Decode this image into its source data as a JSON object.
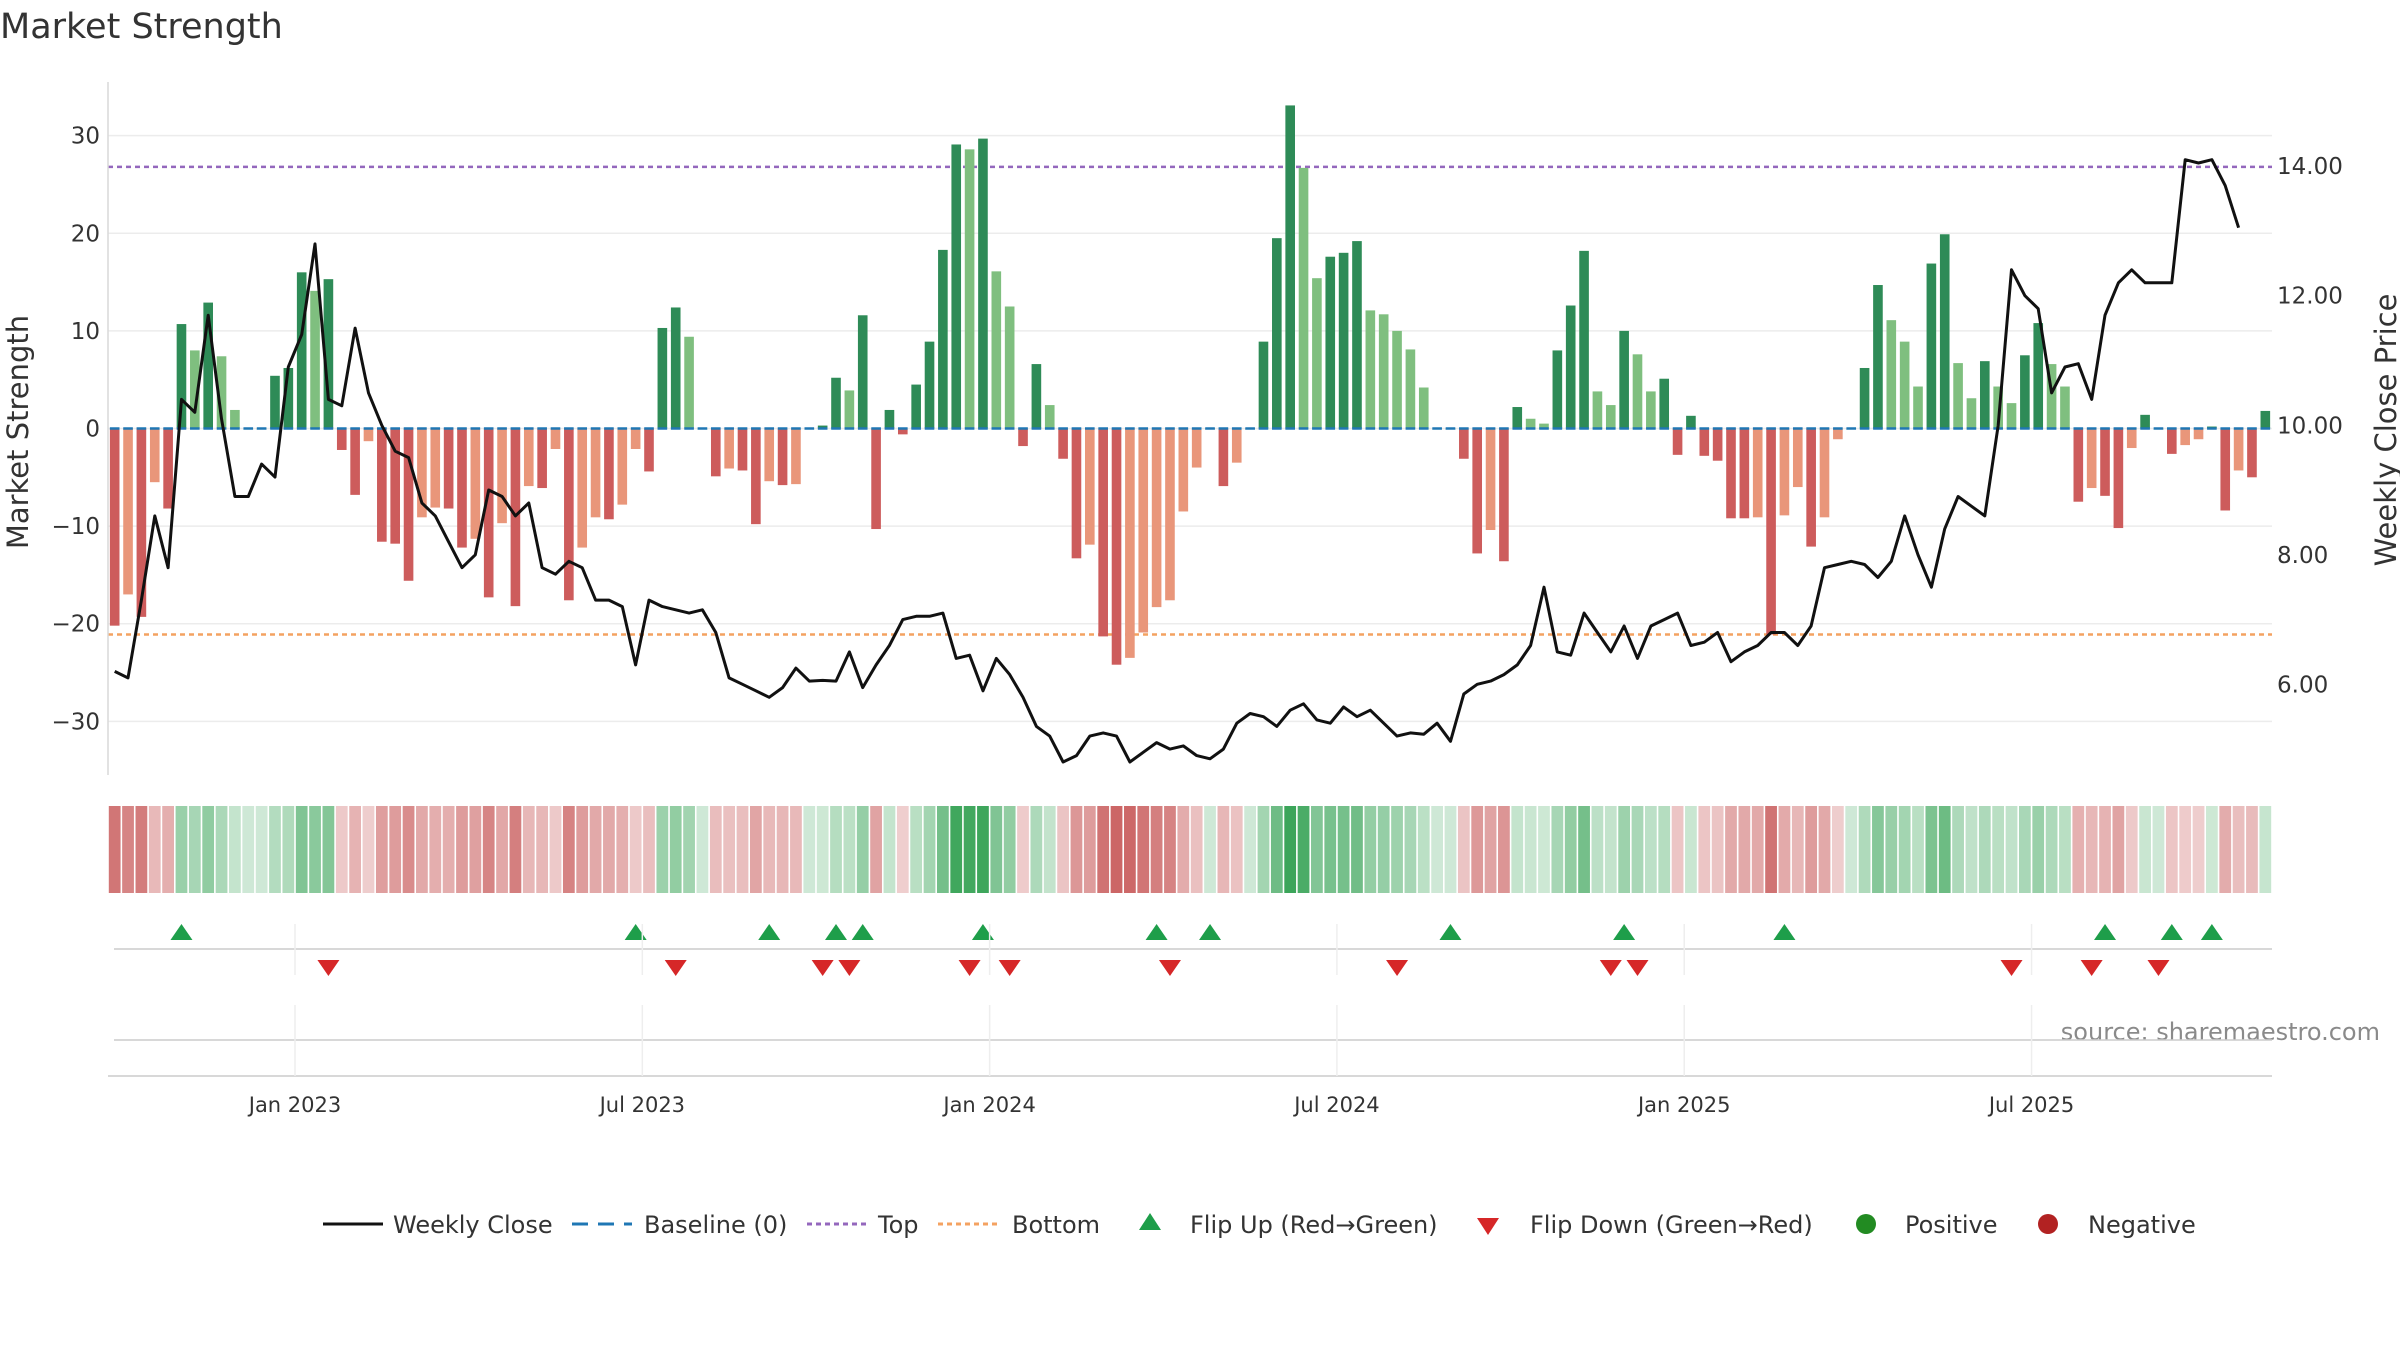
{
  "chart_data": {
    "type": "bar",
    "title": "Market Strength",
    "ylabel": "Market Strength",
    "y2label": "Weekly Close Price",
    "source": "source: sharemaestro.com",
    "ylim": [
      -35.5,
      35.5
    ],
    "y2lim": [
      4.6,
      15.3
    ],
    "yticks": [
      {
        "v": 30,
        "label": "30"
      },
      {
        "v": 20,
        "label": "20"
      },
      {
        "v": 10,
        "label": "10"
      },
      {
        "v": 0,
        "label": "0"
      },
      {
        "v": -10,
        "label": "−10"
      },
      {
        "v": -20,
        "label": "−20"
      },
      {
        "v": -30,
        "label": "−30"
      }
    ],
    "y2ticks": [
      {
        "v": 14,
        "label": "14.00"
      },
      {
        "v": 12,
        "label": "12.00"
      },
      {
        "v": 10,
        "label": "10.00"
      },
      {
        "v": 8,
        "label": "8.00"
      },
      {
        "v": 6,
        "label": "6.00"
      }
    ],
    "xticks": [
      {
        "i": 14,
        "label": "Jan 2023"
      },
      {
        "i": 40,
        "label": "Jul 2023"
      },
      {
        "i": 66,
        "label": "Jan 2024"
      },
      {
        "i": 92,
        "label": "Jul 2024"
      },
      {
        "i": 118,
        "label": "Jan 2025"
      },
      {
        "i": 144,
        "label": "Jul 2025"
      }
    ],
    "top_line": 26.8,
    "bottom_line": -21.1,
    "strength": [
      -20.2,
      -17,
      -19.3,
      -5.5,
      -8.2,
      10.7,
      8.0,
      12.9,
      7.4,
      1.9,
      0,
      0,
      5.4,
      6.2,
      16,
      14.1,
      15.3,
      -2.2,
      -6.8,
      -1.3,
      -11.6,
      -11.8,
      -15.6,
      -9.1,
      -8.1,
      -8.2,
      -12.2,
      -11.3,
      -17.3,
      -9.7,
      -18.2,
      -5.9,
      -6.1,
      -2.1,
      -17.6,
      -12.2,
      -9.1,
      -9.3,
      -7.8,
      -2.1,
      -4.4,
      10.3,
      12.4,
      9.4,
      0,
      -4.9,
      -4.1,
      -4.3,
      -9.8,
      -5.4,
      -5.8,
      -5.7,
      0,
      0.3,
      5.2,
      3.9,
      11.6,
      -10.3,
      1.9,
      -0.6,
      4.5,
      8.9,
      18.3,
      29.1,
      28.6,
      29.7,
      16.1,
      12.5,
      -1.8,
      6.6,
      2.4,
      -3.1,
      -13.3,
      -11.9,
      -21.3,
      -24.2,
      -23.5,
      -20.9,
      -18.3,
      -17.6,
      -8.5,
      -4,
      0,
      -5.9,
      -3.5,
      0,
      8.9,
      19.5,
      33.1,
      26.7,
      15.4,
      17.6,
      18,
      19.2,
      12.1,
      11.7,
      10,
      8.1,
      4.2,
      0,
      0,
      -3.1,
      -12.8,
      -10.4,
      -13.6,
      2.2,
      1,
      0.5,
      8,
      12.6,
      18.2,
      3.8,
      2.4,
      10,
      7.6,
      3.8,
      5.1,
      -2.7,
      1.3,
      -2.8,
      -3.3,
      -9.2,
      -9.2,
      -9.1,
      -21.1,
      -8.9,
      -6,
      -12.1,
      -9.1,
      -1.1,
      0,
      6.2,
      14.7,
      11.1,
      8.9,
      4.3,
      16.9,
      19.9,
      6.7,
      3.1,
      6.9,
      4.3,
      2.6,
      7.5,
      10.8,
      6.6,
      4.3,
      -7.5,
      -6.1,
      -6.9,
      -10.2,
      -2,
      1.4,
      0,
      -2.6,
      -1.7,
      -1.1,
      0.2,
      -8.4,
      -4.3,
      -5,
      1.8
    ],
    "price": [
      6.2,
      6.1,
      7.3,
      8.6,
      7.8,
      10.4,
      10.2,
      11.7,
      10.1,
      8.9,
      8.9,
      9.4,
      9.2,
      10.9,
      11.4,
      12.8,
      10.4,
      10.3,
      11.5,
      10.5,
      10.0,
      9.6,
      9.5,
      8.8,
      8.6,
      8.2,
      7.8,
      8.0,
      9.0,
      8.9,
      8.6,
      8.8,
      7.8,
      7.7,
      7.9,
      7.8,
      7.3,
      7.3,
      7.2,
      6.3,
      7.3,
      7.2,
      7.15,
      7.1,
      7.15,
      6.8,
      6.1,
      6.0,
      5.9,
      5.8,
      5.95,
      6.25,
      6.05,
      6.06,
      6.05,
      6.5,
      5.95,
      6.3,
      6.6,
      7.0,
      7.05,
      7.05,
      7.1,
      6.4,
      6.45,
      5.9,
      6.4,
      6.15,
      5.8,
      5.35,
      5.2,
      4.8,
      4.9,
      5.2,
      5.25,
      5.2,
      4.8,
      4.95,
      5.1,
      5.0,
      5.05,
      4.9,
      4.85,
      5.0,
      5.4,
      5.55,
      5.5,
      5.35,
      5.6,
      5.7,
      5.45,
      5.4,
      5.65,
      5.5,
      5.6,
      5.4,
      5.2,
      5.25,
      5.23,
      5.4,
      5.12,
      5.85,
      6.0,
      6.05,
      6.15,
      6.3,
      6.6,
      7.5,
      6.5,
      6.45,
      7.1,
      6.8,
      6.5,
      6.9,
      6.4,
      6.9,
      7.0,
      7.1,
      6.6,
      6.65,
      6.8,
      6.35,
      6.5,
      6.6,
      6.8,
      6.8,
      6.6,
      6.9,
      7.8,
      7.85,
      7.9,
      7.85,
      7.65,
      7.9,
      8.6,
      8.0,
      7.5,
      8.4,
      8.9,
      8.75,
      8.6,
      10.0,
      12.4,
      12.0,
      11.8,
      10.5,
      10.9,
      10.95,
      10.4,
      11.7,
      12.2,
      12.4,
      12.2,
      12.2,
      12.2,
      14.1,
      14.05,
      14.1,
      13.7,
      13.05
    ],
    "flips_up": [
      5,
      39,
      49,
      54,
      56,
      65,
      78,
      82,
      100,
      113,
      125,
      149,
      154,
      157
    ],
    "flips_down": [
      16,
      42,
      53,
      55,
      64,
      67,
      79,
      96,
      112,
      114,
      142,
      148,
      153
    ],
    "legend": [
      {
        "kind": "line",
        "label": "Weekly Close",
        "color": "#111111"
      },
      {
        "kind": "dash",
        "label": "Baseline (0)",
        "color": "#1f77b4"
      },
      {
        "kind": "dot",
        "label": "Top",
        "color": "#9467bd"
      },
      {
        "kind": "dotorange",
        "label": "Bottom",
        "color": "#f4a261"
      },
      {
        "kind": "tri-up",
        "label": "Flip Up (Red→Green)",
        "color": "#1e9e4a"
      },
      {
        "kind": "tri-down",
        "label": "Flip Down (Green→Red)",
        "color": "#d62728"
      },
      {
        "kind": "circle-green",
        "label": "Positive",
        "color": "#228b22"
      },
      {
        "kind": "circle-red",
        "label": "Negative",
        "color": "#b22222"
      }
    ],
    "colors": {
      "pos_strong": "#2e8b57",
      "pos_weak": "#7fbf7f",
      "neg_strong": "#cd5c5c",
      "neg_weak": "#e9967a",
      "top": "#9467bd",
      "bottom": "#f4a261",
      "baseline": "#1f77b4",
      "price": "#111111"
    }
  }
}
